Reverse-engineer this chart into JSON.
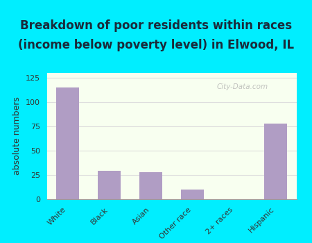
{
  "title_line1": "Breakdown of poor residents within races",
  "title_line2": "(income below poverty level) in Elwood, IL",
  "categories": [
    "White",
    "Black",
    "Asian",
    "Other race",
    "2+ races",
    "Hispanic"
  ],
  "values": [
    115,
    29,
    28,
    10,
    0,
    78
  ],
  "bar_color": "#b09dc4",
  "ylabel": "absolute numbers",
  "ylim": [
    0,
    130
  ],
  "yticks": [
    0,
    25,
    50,
    75,
    100,
    125
  ],
  "bg_color": "#00eeff",
  "plot_bg_top": "#e8f5e0",
  "plot_bg_bottom": "#f8fff0",
  "grid_color": "#dddddd",
  "title_fontsize": 12,
  "axis_label_fontsize": 9,
  "tick_fontsize": 8,
  "watermark": "City-Data.com"
}
